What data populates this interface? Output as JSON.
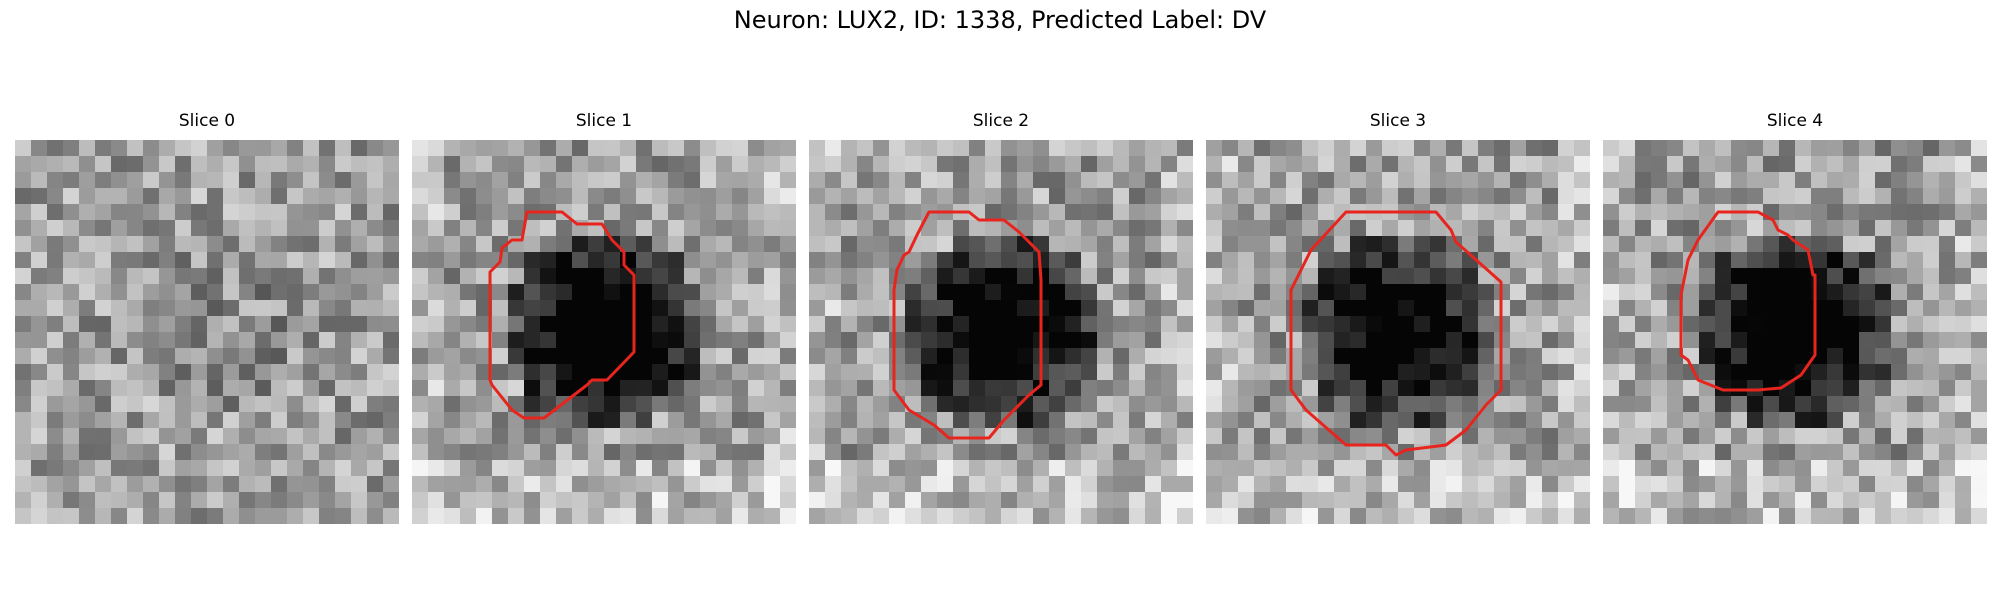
{
  "figure": {
    "title": "Neuron: LUX2, ID: 1338, Predicted Label: DV"
  },
  "panels": [
    {
      "title": "Slice 0",
      "contour": false,
      "seed": 11,
      "blob_strength": 0.1
    },
    {
      "title": "Slice 1",
      "contour": true,
      "seed": 23,
      "blob_strength": 0.8
    },
    {
      "title": "Slice 2",
      "contour": true,
      "seed": 37,
      "blob_strength": 0.7
    },
    {
      "title": "Slice 3",
      "contour": true,
      "seed": 51,
      "blob_strength": 0.6
    },
    {
      "title": "Slice 4",
      "contour": true,
      "seed": 67,
      "blob_strength": 0.75
    }
  ],
  "colors": {
    "contour": "#e8241e",
    "background": "#ffffff"
  },
  "icons": []
}
